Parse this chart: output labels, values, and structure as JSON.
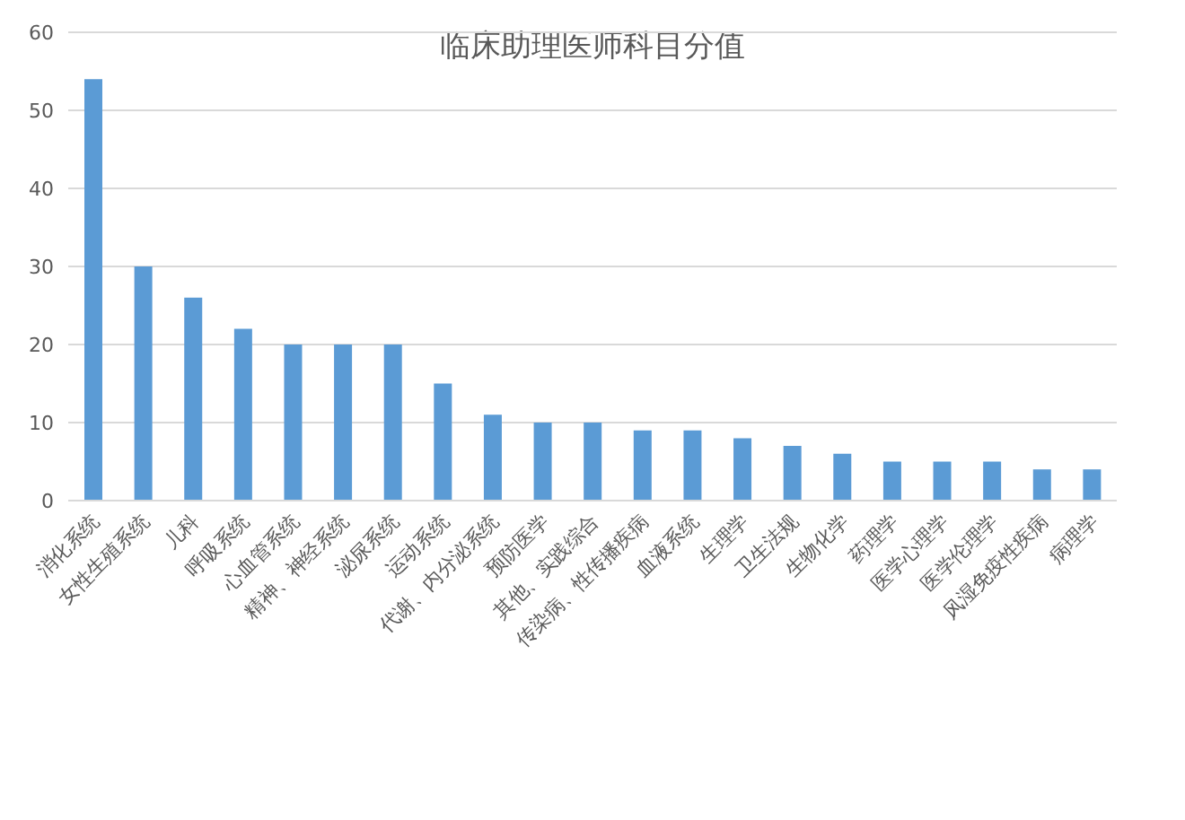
{
  "chart_data": {
    "type": "bar",
    "title": "临床助理医师科目分值",
    "categories": [
      "消化系统",
      "女性生殖系统",
      "儿科",
      "呼吸系统",
      "心血管系统",
      "精神、神经系统",
      "泌尿系统",
      "运动系统",
      "代谢、内分泌系统",
      "预防医学",
      "其他、实践综合",
      "传染病、性传播疾病",
      "血液系统",
      "生理学",
      "卫生法规",
      "生物化学",
      "药理学",
      "医学心理学",
      "医学伦理学",
      "风湿免疫性疾病",
      "病理学"
    ],
    "values": [
      54,
      30,
      26,
      22,
      20,
      20,
      20,
      15,
      11,
      10,
      10,
      9,
      9,
      8,
      7,
      6,
      5,
      5,
      5,
      4,
      4
    ],
    "color": "#5b9bd5",
    "ylim": [
      0,
      60
    ],
    "yticks": [
      0,
      10,
      20,
      30,
      40,
      50,
      60
    ],
    "grid": "y",
    "legend": false
  }
}
